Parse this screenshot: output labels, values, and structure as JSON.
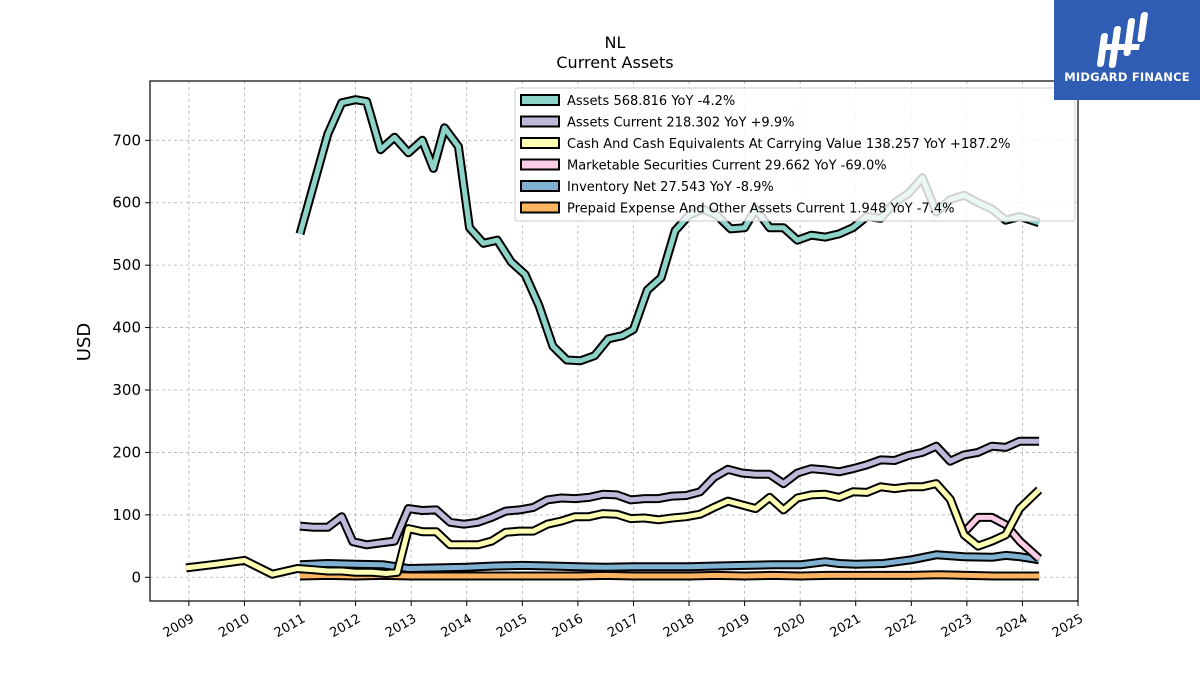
{
  "logo": {
    "text": "MIDGARD FINANCE",
    "color": "#2f5db3"
  },
  "chart_data": {
    "type": "line",
    "title": "NL",
    "subtitle": "Current  Assets",
    "ylabel": "USD",
    "xlabel": "",
    "xlim": [
      2008.3,
      2025.0
    ],
    "ylim": [
      -38,
      795
    ],
    "xticks": [
      "2009",
      "2010",
      "2011",
      "2012",
      "2013",
      "2014",
      "2015",
      "2016",
      "2017",
      "2018",
      "2019",
      "2020",
      "2021",
      "2022",
      "2023",
      "2024",
      "2025"
    ],
    "yticks": [
      0,
      100,
      200,
      300,
      400,
      500,
      600,
      700
    ],
    "grid": true,
    "legend_position": "top-right",
    "series": [
      {
        "name": "Assets",
        "legend": "Assets  568.816 YoY -4.2%",
        "color": "#8dd3c7",
        "points": [
          [
            2011.0,
            550
          ],
          [
            2011.25,
            630
          ],
          [
            2011.5,
            710
          ],
          [
            2011.75,
            760
          ],
          [
            2012.0,
            765
          ],
          [
            2012.2,
            762
          ],
          [
            2012.45,
            685
          ],
          [
            2012.7,
            705
          ],
          [
            2012.95,
            680
          ],
          [
            2013.2,
            700
          ],
          [
            2013.4,
            655
          ],
          [
            2013.6,
            720
          ],
          [
            2013.85,
            690
          ],
          [
            2014.05,
            560
          ],
          [
            2014.3,
            535
          ],
          [
            2014.55,
            540
          ],
          [
            2014.8,
            505
          ],
          [
            2015.05,
            485
          ],
          [
            2015.3,
            435
          ],
          [
            2015.55,
            370
          ],
          [
            2015.8,
            348
          ],
          [
            2016.05,
            347
          ],
          [
            2016.3,
            355
          ],
          [
            2016.55,
            382
          ],
          [
            2016.8,
            387
          ],
          [
            2017.0,
            397
          ],
          [
            2017.25,
            460
          ],
          [
            2017.5,
            480
          ],
          [
            2017.75,
            555
          ],
          [
            2018.0,
            580
          ],
          [
            2018.25,
            590
          ],
          [
            2018.5,
            580
          ],
          [
            2018.75,
            558
          ],
          [
            2019.0,
            560
          ],
          [
            2019.2,
            590
          ],
          [
            2019.45,
            560
          ],
          [
            2019.7,
            560
          ],
          [
            2019.95,
            540
          ],
          [
            2020.2,
            548
          ],
          [
            2020.45,
            545
          ],
          [
            2020.7,
            550
          ],
          [
            2020.95,
            560
          ],
          [
            2021.2,
            578
          ],
          [
            2021.45,
            575
          ],
          [
            2021.7,
            600
          ],
          [
            2021.95,
            615
          ],
          [
            2022.2,
            640
          ],
          [
            2022.45,
            585
          ],
          [
            2022.7,
            605
          ],
          [
            2022.95,
            612
          ],
          [
            2023.2,
            600
          ],
          [
            2023.45,
            590
          ],
          [
            2023.7,
            572
          ],
          [
            2023.95,
            578
          ],
          [
            2024.3,
            568
          ]
        ]
      },
      {
        "name": "Assets Current",
        "legend": "Assets Current  218.302 YoY +9.9%",
        "color": "#bebada",
        "points": [
          [
            2011.0,
            82
          ],
          [
            2011.25,
            80
          ],
          [
            2011.5,
            80
          ],
          [
            2011.75,
            97
          ],
          [
            2011.95,
            57
          ],
          [
            2012.2,
            52
          ],
          [
            2012.45,
            55
          ],
          [
            2012.7,
            58
          ],
          [
            2012.95,
            110
          ],
          [
            2013.2,
            107
          ],
          [
            2013.45,
            108
          ],
          [
            2013.7,
            88
          ],
          [
            2013.95,
            85
          ],
          [
            2014.2,
            88
          ],
          [
            2014.45,
            96
          ],
          [
            2014.7,
            106
          ],
          [
            2014.95,
            108
          ],
          [
            2015.2,
            112
          ],
          [
            2015.45,
            124
          ],
          [
            2015.7,
            127
          ],
          [
            2015.95,
            126
          ],
          [
            2016.2,
            128
          ],
          [
            2016.45,
            133
          ],
          [
            2016.7,
            132
          ],
          [
            2016.95,
            124
          ],
          [
            2017.2,
            126
          ],
          [
            2017.45,
            126
          ],
          [
            2017.7,
            130
          ],
          [
            2017.95,
            131
          ],
          [
            2018.2,
            137
          ],
          [
            2018.45,
            160
          ],
          [
            2018.7,
            173
          ],
          [
            2018.95,
            167
          ],
          [
            2019.2,
            165
          ],
          [
            2019.45,
            165
          ],
          [
            2019.7,
            150
          ],
          [
            2019.95,
            167
          ],
          [
            2020.2,
            174
          ],
          [
            2020.45,
            172
          ],
          [
            2020.7,
            169
          ],
          [
            2020.95,
            174
          ],
          [
            2021.2,
            180
          ],
          [
            2021.45,
            188
          ],
          [
            2021.7,
            187
          ],
          [
            2021.95,
            195
          ],
          [
            2022.2,
            200
          ],
          [
            2022.45,
            210
          ],
          [
            2022.7,
            186
          ],
          [
            2022.95,
            196
          ],
          [
            2023.2,
            200
          ],
          [
            2023.45,
            210
          ],
          [
            2023.7,
            208
          ],
          [
            2023.95,
            218
          ],
          [
            2024.3,
            218
          ]
        ]
      },
      {
        "name": "Cash And Cash Equivalents At Carrying Value",
        "legend": "Cash And Cash Equivalents At Carrying Value  138.257 YoY +187.2%",
        "color": "#ffffb3",
        "points": [
          [
            2008.95,
            15
          ],
          [
            2009.5,
            21
          ],
          [
            2010.0,
            27
          ],
          [
            2010.5,
            5
          ],
          [
            2010.95,
            14
          ],
          [
            2011.25,
            12
          ],
          [
            2011.5,
            10
          ],
          [
            2011.75,
            10
          ],
          [
            2012.0,
            8
          ],
          [
            2012.3,
            8
          ],
          [
            2012.55,
            6
          ],
          [
            2012.75,
            8
          ],
          [
            2012.95,
            78
          ],
          [
            2013.2,
            73
          ],
          [
            2013.45,
            73
          ],
          [
            2013.7,
            52
          ],
          [
            2013.95,
            52
          ],
          [
            2014.2,
            52
          ],
          [
            2014.45,
            58
          ],
          [
            2014.7,
            72
          ],
          [
            2014.95,
            74
          ],
          [
            2015.2,
            74
          ],
          [
            2015.45,
            85
          ],
          [
            2015.7,
            90
          ],
          [
            2015.95,
            97
          ],
          [
            2016.2,
            97
          ],
          [
            2016.45,
            102
          ],
          [
            2016.7,
            101
          ],
          [
            2016.95,
            94
          ],
          [
            2017.2,
            95
          ],
          [
            2017.45,
            92
          ],
          [
            2017.7,
            95
          ],
          [
            2017.95,
            97
          ],
          [
            2018.2,
            101
          ],
          [
            2018.45,
            112
          ],
          [
            2018.7,
            122
          ],
          [
            2018.95,
            116
          ],
          [
            2019.2,
            110
          ],
          [
            2019.45,
            128
          ],
          [
            2019.7,
            108
          ],
          [
            2019.95,
            127
          ],
          [
            2020.2,
            132
          ],
          [
            2020.45,
            133
          ],
          [
            2020.7,
            128
          ],
          [
            2020.95,
            137
          ],
          [
            2021.2,
            136
          ],
          [
            2021.45,
            145
          ],
          [
            2021.7,
            142
          ],
          [
            2021.95,
            145
          ],
          [
            2022.2,
            145
          ],
          [
            2022.45,
            150
          ],
          [
            2022.7,
            125
          ],
          [
            2022.95,
            68
          ],
          [
            2023.2,
            50
          ],
          [
            2023.45,
            58
          ],
          [
            2023.7,
            68
          ],
          [
            2023.95,
            110
          ],
          [
            2024.3,
            140
          ]
        ]
      },
      {
        "name": "Marketable Securities Current",
        "legend": "Marketable Securities Current  29.662 YoY -69.0%",
        "color": "#fccde5",
        "points": [
          [
            2022.95,
            72
          ],
          [
            2023.2,
            96
          ],
          [
            2023.45,
            96
          ],
          [
            2023.7,
            84
          ],
          [
            2023.95,
            58
          ],
          [
            2024.3,
            30
          ]
        ]
      },
      {
        "name": "Inventory Net",
        "legend": "Inventory Net  27.543 YoY -8.9%",
        "color": "#80b1d3",
        "points": [
          [
            2011.0,
            20
          ],
          [
            2011.5,
            22
          ],
          [
            2012.0,
            21
          ],
          [
            2012.5,
            20
          ],
          [
            2012.95,
            14
          ],
          [
            2013.5,
            15
          ],
          [
            2014.0,
            16
          ],
          [
            2014.5,
            18
          ],
          [
            2015.0,
            19
          ],
          [
            2015.5,
            18
          ],
          [
            2016.0,
            17
          ],
          [
            2016.5,
            16
          ],
          [
            2017.0,
            17
          ],
          [
            2017.5,
            17
          ],
          [
            2018.0,
            17
          ],
          [
            2018.5,
            18
          ],
          [
            2019.0,
            19
          ],
          [
            2019.5,
            20
          ],
          [
            2020.0,
            20
          ],
          [
            2020.45,
            25
          ],
          [
            2020.7,
            22
          ],
          [
            2021.0,
            21
          ],
          [
            2021.5,
            22
          ],
          [
            2022.0,
            28
          ],
          [
            2022.45,
            36
          ],
          [
            2022.95,
            33
          ],
          [
            2023.45,
            32
          ],
          [
            2023.7,
            35
          ],
          [
            2023.95,
            33
          ],
          [
            2024.3,
            28
          ]
        ]
      },
      {
        "name": "Prepaid Expense And Other Assets Current",
        "legend": "Prepaid Expense And Other Assets Current  1.948 YoY -7.4%",
        "color": "#fdb462",
        "points": [
          [
            2011.0,
            2
          ],
          [
            2011.5,
            3
          ],
          [
            2012.0,
            2
          ],
          [
            2012.5,
            3
          ],
          [
            2013.0,
            2
          ],
          [
            2013.5,
            2
          ],
          [
            2014.0,
            2
          ],
          [
            2014.5,
            2
          ],
          [
            2015.0,
            2
          ],
          [
            2015.5,
            2
          ],
          [
            2016.0,
            2
          ],
          [
            2016.5,
            3
          ],
          [
            2017.0,
            2
          ],
          [
            2017.5,
            2
          ],
          [
            2018.0,
            2
          ],
          [
            2018.5,
            3
          ],
          [
            2019.0,
            2
          ],
          [
            2019.5,
            3
          ],
          [
            2020.0,
            2
          ],
          [
            2020.5,
            3
          ],
          [
            2021.0,
            3
          ],
          [
            2021.5,
            3
          ],
          [
            2022.0,
            3
          ],
          [
            2022.5,
            4
          ],
          [
            2023.0,
            3
          ],
          [
            2023.5,
            2
          ],
          [
            2024.0,
            2
          ],
          [
            2024.3,
            2
          ]
        ]
      }
    ]
  }
}
